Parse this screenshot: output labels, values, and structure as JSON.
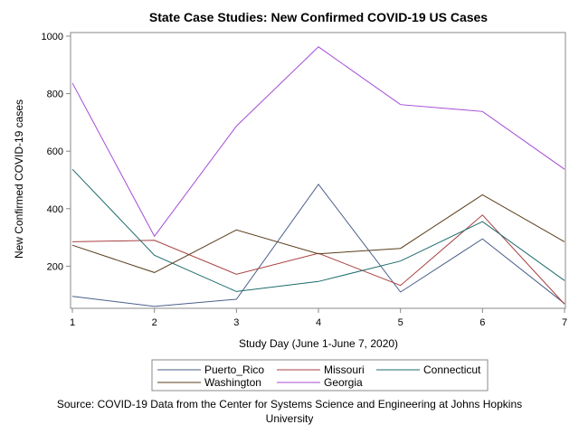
{
  "chart_data": {
    "type": "line",
    "title": "State Case Studies: New Confirmed COVID-19 US Cases",
    "xlabel": "Study Day (June 1-June 7, 2020)",
    "ylabel": "New Confirmed COVID-19 cases",
    "x": [
      1,
      2,
      3,
      4,
      5,
      6,
      7
    ],
    "x_ticks": [
      "1",
      "2",
      "3",
      "4",
      "5",
      "6",
      "7"
    ],
    "y_ticks": [
      "200",
      "400",
      "600",
      "800",
      "1000"
    ],
    "xlim": [
      1,
      7
    ],
    "ylim": [
      45,
      1000
    ],
    "grid": false,
    "legend_position": "bottom",
    "series": [
      {
        "name": "Puerto_Rico",
        "color": "#4a5f8a",
        "values": [
          95,
          60,
          85,
          485,
          110,
          295,
          70
        ]
      },
      {
        "name": "Missouri",
        "color": "#a84040",
        "values": [
          285,
          290,
          172,
          245,
          133,
          378,
          68
        ]
      },
      {
        "name": "Connecticut",
        "color": "#1d6b6b",
        "values": [
          537,
          238,
          112,
          147,
          218,
          355,
          150
        ]
      },
      {
        "name": "Washington",
        "color": "#5a3d1a",
        "values": [
          273,
          178,
          326,
          243,
          262,
          448,
          285
        ]
      },
      {
        "name": "Georgia",
        "color": "#a44ad6",
        "values": [
          837,
          304,
          687,
          963,
          762,
          738,
          537
        ]
      }
    ],
    "footnote": "Source: COVID-19 Data from the Center for Systems Science and Engineering at Johns Hopkins University"
  }
}
